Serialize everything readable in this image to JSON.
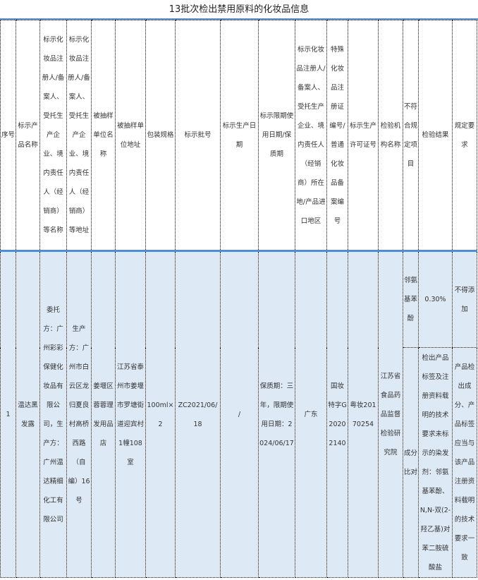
{
  "title": "13批次检出禁用原料的化妆品信息",
  "headers": [
    "序号",
    "标示产品名称",
    "标示化妆品注册人/备案人、受托生产企业、境内责任人（经销商）等名称",
    "标示化妆品注册人/备案人、受托生产企业、境内责任人（经销商）等地址",
    "被抽样单位名称",
    "被抽样单位地址",
    "包装规格",
    "标示批号",
    "标示生产日期",
    "标示限期使用日期/保质期",
    "标示化妆品注册人/备案人、受托生产企业、境内责任人（经销商）所在地/产品进口地区",
    "特殊化妆品注册证编号/普通化妆品备案编号",
    "标示生产许可证号",
    "检验机构名称",
    "不符合规定项目",
    "检验结果",
    "规定要求"
  ],
  "rows": [
    {
      "no": "1",
      "product": "温达黑发露",
      "registrant_name": "委托方：广州彩彩保健化妆品有限公司，生产方：广州温达精细化工有限公司",
      "registrant_address": "生产方：广州市白云区龙归夏良村高桥西路（自编）16号",
      "sampled_unit": "姜堰区蓉蓉理发用品店",
      "sampled_address": "江苏省泰州市姜堰市罗塘街道迎宾村1幢108室",
      "package": "100ml×2",
      "batch": "ZC2021/06/18",
      "production_date": "/",
      "expiry": "保质期：三年，限期使用日期：2024/06/17",
      "location": "广东",
      "registration_no": "国妆特字G20202140",
      "license_no": "粤妆20170254",
      "lab": "江苏省食品药品监督检验研究院",
      "items": [
        {
          "item": "邻氨基苯酚",
          "result": "0.30%",
          "requirement": "不得添加"
        },
        {
          "item": "成分比对",
          "result": "检出产品标签及注册资料载明的技术要求未标示的染发剂：邻氨基苯酚、N,N-双(2-羟乙基)对苯二胺硫酸盐",
          "requirement": "产品检出成分、产品标签应当与该产品注册资料载明的技术要求一致"
        }
      ]
    }
  ]
}
